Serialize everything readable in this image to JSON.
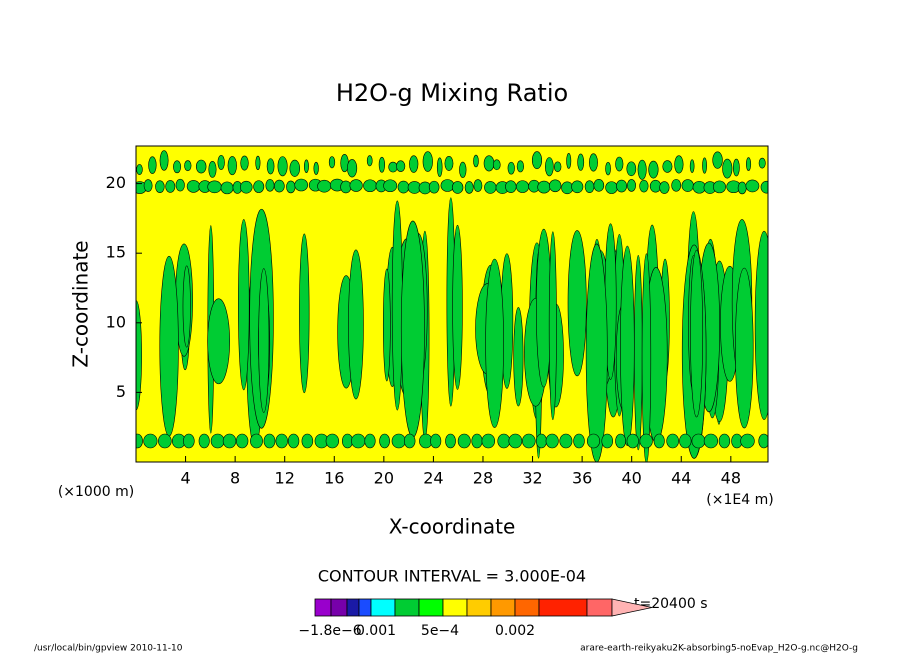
{
  "chart_data": {
    "type": "contour",
    "title": "H2O-g Mixing Ratio",
    "x_label": "X-coordinate",
    "y_label": "Z-coordinate",
    "x_unit_left": "(×1000 m)",
    "x_unit_right": "(×1E4 m)",
    "xlim": [
      0,
      51
    ],
    "ylim": [
      0,
      22.7
    ],
    "xticks": [
      4,
      8,
      12,
      16,
      20,
      24,
      28,
      32,
      36,
      40,
      44,
      48
    ],
    "yticks": [
      5,
      10,
      15,
      20
    ],
    "contour_interval": "CONTOUR INTERVAL = 3.000E-04",
    "time_label": "t=20400 s",
    "colorbar_colors": [
      "#9900cc",
      "#7700aa",
      "#1a1aa6",
      "#1a4cff",
      "#00ffff",
      "#00cc33",
      "#00ff00",
      "#ffff00",
      "#ffcc00",
      "#ff9900",
      "#ff6600",
      "#ff2200",
      "#ff6666",
      "#ffb3b3"
    ],
    "colorbar_labels": [
      "−1.8e−6",
      "0.001",
      "5e−4",
      "0.002"
    ],
    "footer_left": "/usr/local/bin/gpview  2010-11-10",
    "footer_right": "arare-earth-reikyaku2K-absorbing5-noEvap_H2O-g.nc@H2O-g"
  }
}
